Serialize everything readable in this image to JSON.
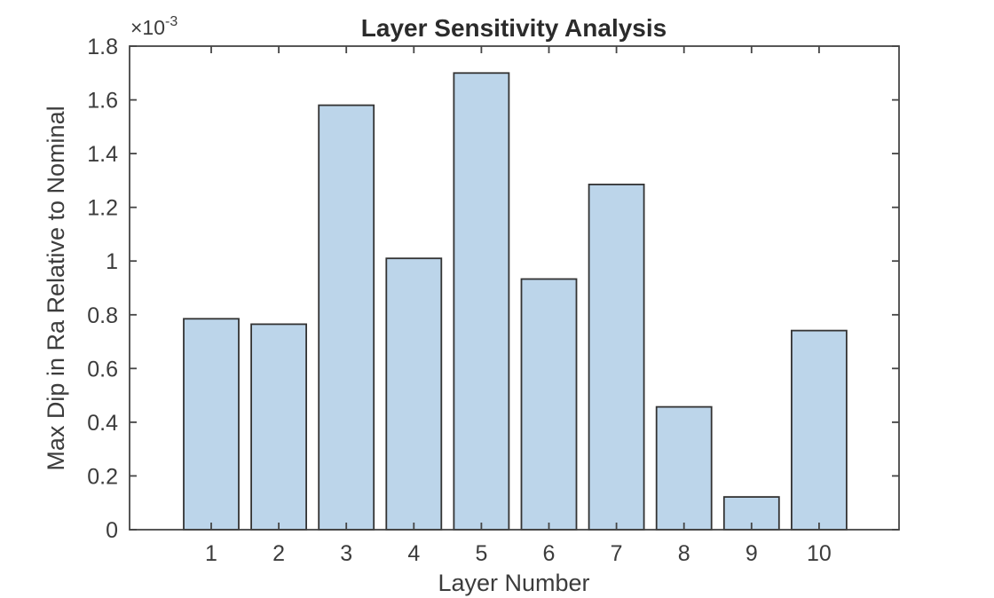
{
  "chart_data": {
    "type": "bar",
    "title": "Layer Sensitivity Analysis",
    "xlabel": "Layer Number",
    "ylabel": "Max Dip in Ra Relative to Nominal",
    "y_exponent_label": {
      "base": "×10",
      "power": "-3"
    },
    "categories": [
      "1",
      "2",
      "3",
      "4",
      "5",
      "6",
      "7",
      "8",
      "9",
      "10"
    ],
    "values": [
      0.000785,
      0.000765,
      0.00158,
      0.00101,
      0.0017,
      0.000933,
      0.001285,
      0.000457,
      0.000122,
      0.000741
    ],
    "values_e3": [
      0.785,
      0.765,
      1.58,
      1.01,
      1.7,
      0.933,
      1.285,
      0.457,
      0.122,
      0.741
    ],
    "ylim_e3": [
      0,
      1.8
    ],
    "yticks_e3": [
      0,
      0.2,
      0.4,
      0.6,
      0.8,
      1,
      1.2,
      1.4,
      1.6,
      1.8
    ],
    "ytick_labels": [
      "0",
      "0.2",
      "0.4",
      "0.6",
      "0.8",
      "1",
      "1.2",
      "1.4",
      "1.6",
      "1.8"
    ],
    "grid": false,
    "legend_position": "none",
    "bar_width_fraction": 0.815,
    "colors": {
      "bar_fill": "#BCD5EA",
      "bar_edge": "#333333",
      "axis": "#454545",
      "tick_text": "#3C3C3C",
      "title_text": "#2B2B2B",
      "background": "#FFFFFF"
    }
  }
}
